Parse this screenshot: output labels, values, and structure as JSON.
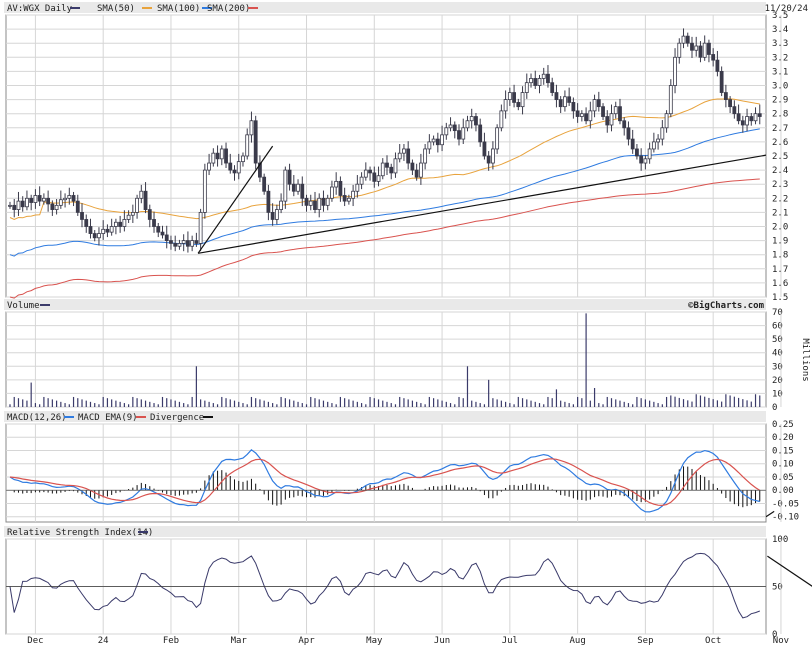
{
  "header": {
    "ticker": "AV:WGX Daily",
    "date": "11/20/24",
    "legend": [
      {
        "label": "SMA(50)",
        "color": "#e8a33d"
      },
      {
        "label": "SMA(100)",
        "color": "#2f7be0"
      },
      {
        "label": "SMA(200)",
        "color": "#d9534f"
      }
    ]
  },
  "panels": {
    "volume": {
      "label": "Volume",
      "unit": "Millions",
      "credit": "©BigCharts.com"
    },
    "macd": {
      "label": "MACD(12,26)",
      "ema_label": "MACD EMA(9)",
      "divergence_label": "Divergence"
    },
    "rsi": {
      "label": "Relative Strength Index(14)"
    }
  },
  "colors": {
    "candle": "#3a3a4a",
    "sma50": "#e8a33d",
    "sma100": "#2f7be0",
    "sma200": "#d9534f",
    "macd": "#2f7be0",
    "macd_ema": "#d9534f",
    "trend": "#111111",
    "marker": "#3a3a6a"
  },
  "chart_data": [
    {
      "type": "candlestick",
      "title": "AV:WGX Daily",
      "x_labels": [
        "Dec",
        "24",
        "Feb",
        "Mar",
        "Apr",
        "May",
        "Jun",
        "Jul",
        "Aug",
        "Sep",
        "Oct",
        "Nov"
      ],
      "yticks": [
        "1.5",
        "1.6",
        "1.7",
        "1.8",
        "1.9",
        "2.0",
        "2.1",
        "2.2",
        "2.3",
        "2.4",
        "2.5",
        "2.6",
        "2.7",
        "2.8",
        "2.9",
        "3.0",
        "3.1",
        "3.2",
        "3.3",
        "3.4",
        "3.5"
      ],
      "ylim": [
        1.5,
        3.5
      ],
      "close": [
        2.15,
        2.12,
        2.18,
        2.14,
        2.2,
        2.17,
        2.22,
        2.18,
        2.2,
        2.16,
        2.12,
        2.15,
        2.19,
        2.2,
        2.22,
        2.18,
        2.1,
        2.05,
        2.0,
        1.95,
        1.92,
        1.95,
        1.98,
        1.96,
        2.0,
        2.03,
        2.0,
        2.05,
        2.08,
        2.1,
        2.2,
        2.25,
        2.12,
        2.05,
        2.0,
        1.96,
        1.94,
        1.9,
        1.88,
        1.86,
        1.88,
        1.9,
        1.86,
        1.9,
        1.88,
        2.1,
        2.4,
        2.45,
        2.52,
        2.48,
        2.55,
        2.45,
        2.4,
        2.38,
        2.46,
        2.5,
        2.65,
        2.75,
        2.45,
        2.35,
        2.25,
        2.1,
        2.05,
        2.12,
        2.18,
        2.4,
        2.3,
        2.25,
        2.3,
        2.2,
        2.15,
        2.18,
        2.12,
        2.2,
        2.15,
        2.2,
        2.28,
        2.32,
        2.22,
        2.18,
        2.2,
        2.25,
        2.3,
        2.35,
        2.4,
        2.38,
        2.32,
        2.36,
        2.45,
        2.42,
        2.38,
        2.48,
        2.52,
        2.55,
        2.45,
        2.4,
        2.35,
        2.45,
        2.55,
        2.6,
        2.62,
        2.58,
        2.65,
        2.7,
        2.72,
        2.68,
        2.62,
        2.7,
        2.75,
        2.78,
        2.72,
        2.6,
        2.5,
        2.45,
        2.55,
        2.7,
        2.82,
        2.9,
        2.95,
        2.88,
        2.85,
        2.95,
        3.02,
        3.05,
        3.0,
        3.05,
        3.08,
        3.02,
        2.95,
        2.9,
        2.85,
        2.92,
        2.88,
        2.82,
        2.78,
        2.8,
        2.75,
        2.82,
        2.9,
        2.85,
        2.78,
        2.72,
        2.8,
        2.85,
        2.75,
        2.7,
        2.62,
        2.55,
        2.5,
        2.45,
        2.48,
        2.55,
        2.6,
        2.62,
        2.7,
        2.8,
        3.0,
        3.2,
        3.3,
        3.35,
        3.3,
        3.25,
        3.28,
        3.2,
        3.3,
        3.22,
        3.18,
        3.1,
        2.95,
        2.9,
        2.85,
        2.8,
        2.75,
        2.72,
        2.78,
        2.75,
        2.8,
        2.78
      ],
      "trendlines": [
        [
          [
            2.4,
            1.81
          ],
          [
            3.5,
            2.57
          ]
        ],
        [
          [
            10.9,
            0.23
          ],
          [
            11.6,
            0.03
          ]
        ],
        [
          [
            10.8,
            82
          ],
          [
            11.55,
            46
          ]
        ]
      ]
    },
    {
      "type": "bar",
      "title": "Volume",
      "ylabel": "Millions",
      "yticks": [
        "0",
        "10",
        "20",
        "30",
        "40",
        "50",
        "60",
        "70"
      ],
      "ylim": [
        0,
        70
      ],
      "spikes": [
        {
          "index": 5,
          "value": 18
        },
        {
          "index": 44,
          "value": 30
        },
        {
          "index": 108,
          "value": 30
        },
        {
          "index": 113,
          "value": 20
        },
        {
          "index": 129,
          "value": 13
        },
        {
          "index": 136,
          "value": 69
        },
        {
          "index": 138,
          "value": 14
        }
      ]
    },
    {
      "type": "line",
      "title": "MACD(12,26)",
      "series": [
        {
          "name": "MACD EMA(9)"
        },
        {
          "name": "Divergence"
        }
      ],
      "yticks": [
        "-0.10",
        "-0.05",
        "0.00",
        "0.05",
        "0.10",
        "0.15",
        "0.20",
        "0.25"
      ],
      "ylim": [
        -0.12,
        0.25
      ]
    },
    {
      "type": "line",
      "title": "Relative Strength Index(14)",
      "yticks": [
        "0",
        "50",
        "100"
      ],
      "ylim": [
        0,
        100
      ]
    }
  ]
}
